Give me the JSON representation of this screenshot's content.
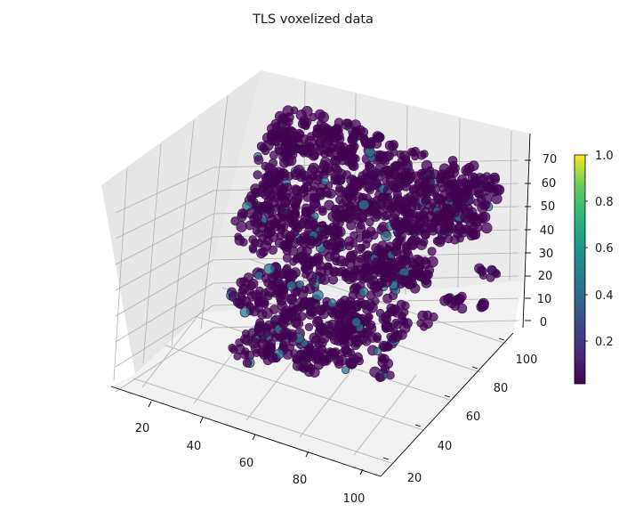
{
  "chart_data": {
    "type": "scatter",
    "title": "TLS voxelized data",
    "projection": "3d",
    "colormap": "viridis",
    "marker_color": "#440154",
    "colors": {
      "pane_left": "#e6e6e6",
      "pane_right": "#ebebeb",
      "pane_floor": "#f2f2f2",
      "grid": "#b0b0b0",
      "marker": "#440154",
      "marker_edge": "#3b0a52",
      "highlight": "#2a788e"
    },
    "x_ticks": [
      "20",
      "40",
      "60",
      "80",
      "100"
    ],
    "y_ticks": [
      "20",
      "40",
      "60",
      "80",
      "100"
    ],
    "z_ticks": [
      "0",
      "10",
      "20",
      "30",
      "40",
      "50",
      "60",
      "70"
    ],
    "xlim": [
      10,
      105
    ],
    "ylim": [
      10,
      105
    ],
    "zlim": [
      -5,
      75
    ],
    "colorbar": {
      "ticks": [
        "0.2",
        "0.4",
        "0.6",
        "0.8",
        "1.0"
      ],
      "range": [
        0.0,
        1.0
      ]
    }
  }
}
